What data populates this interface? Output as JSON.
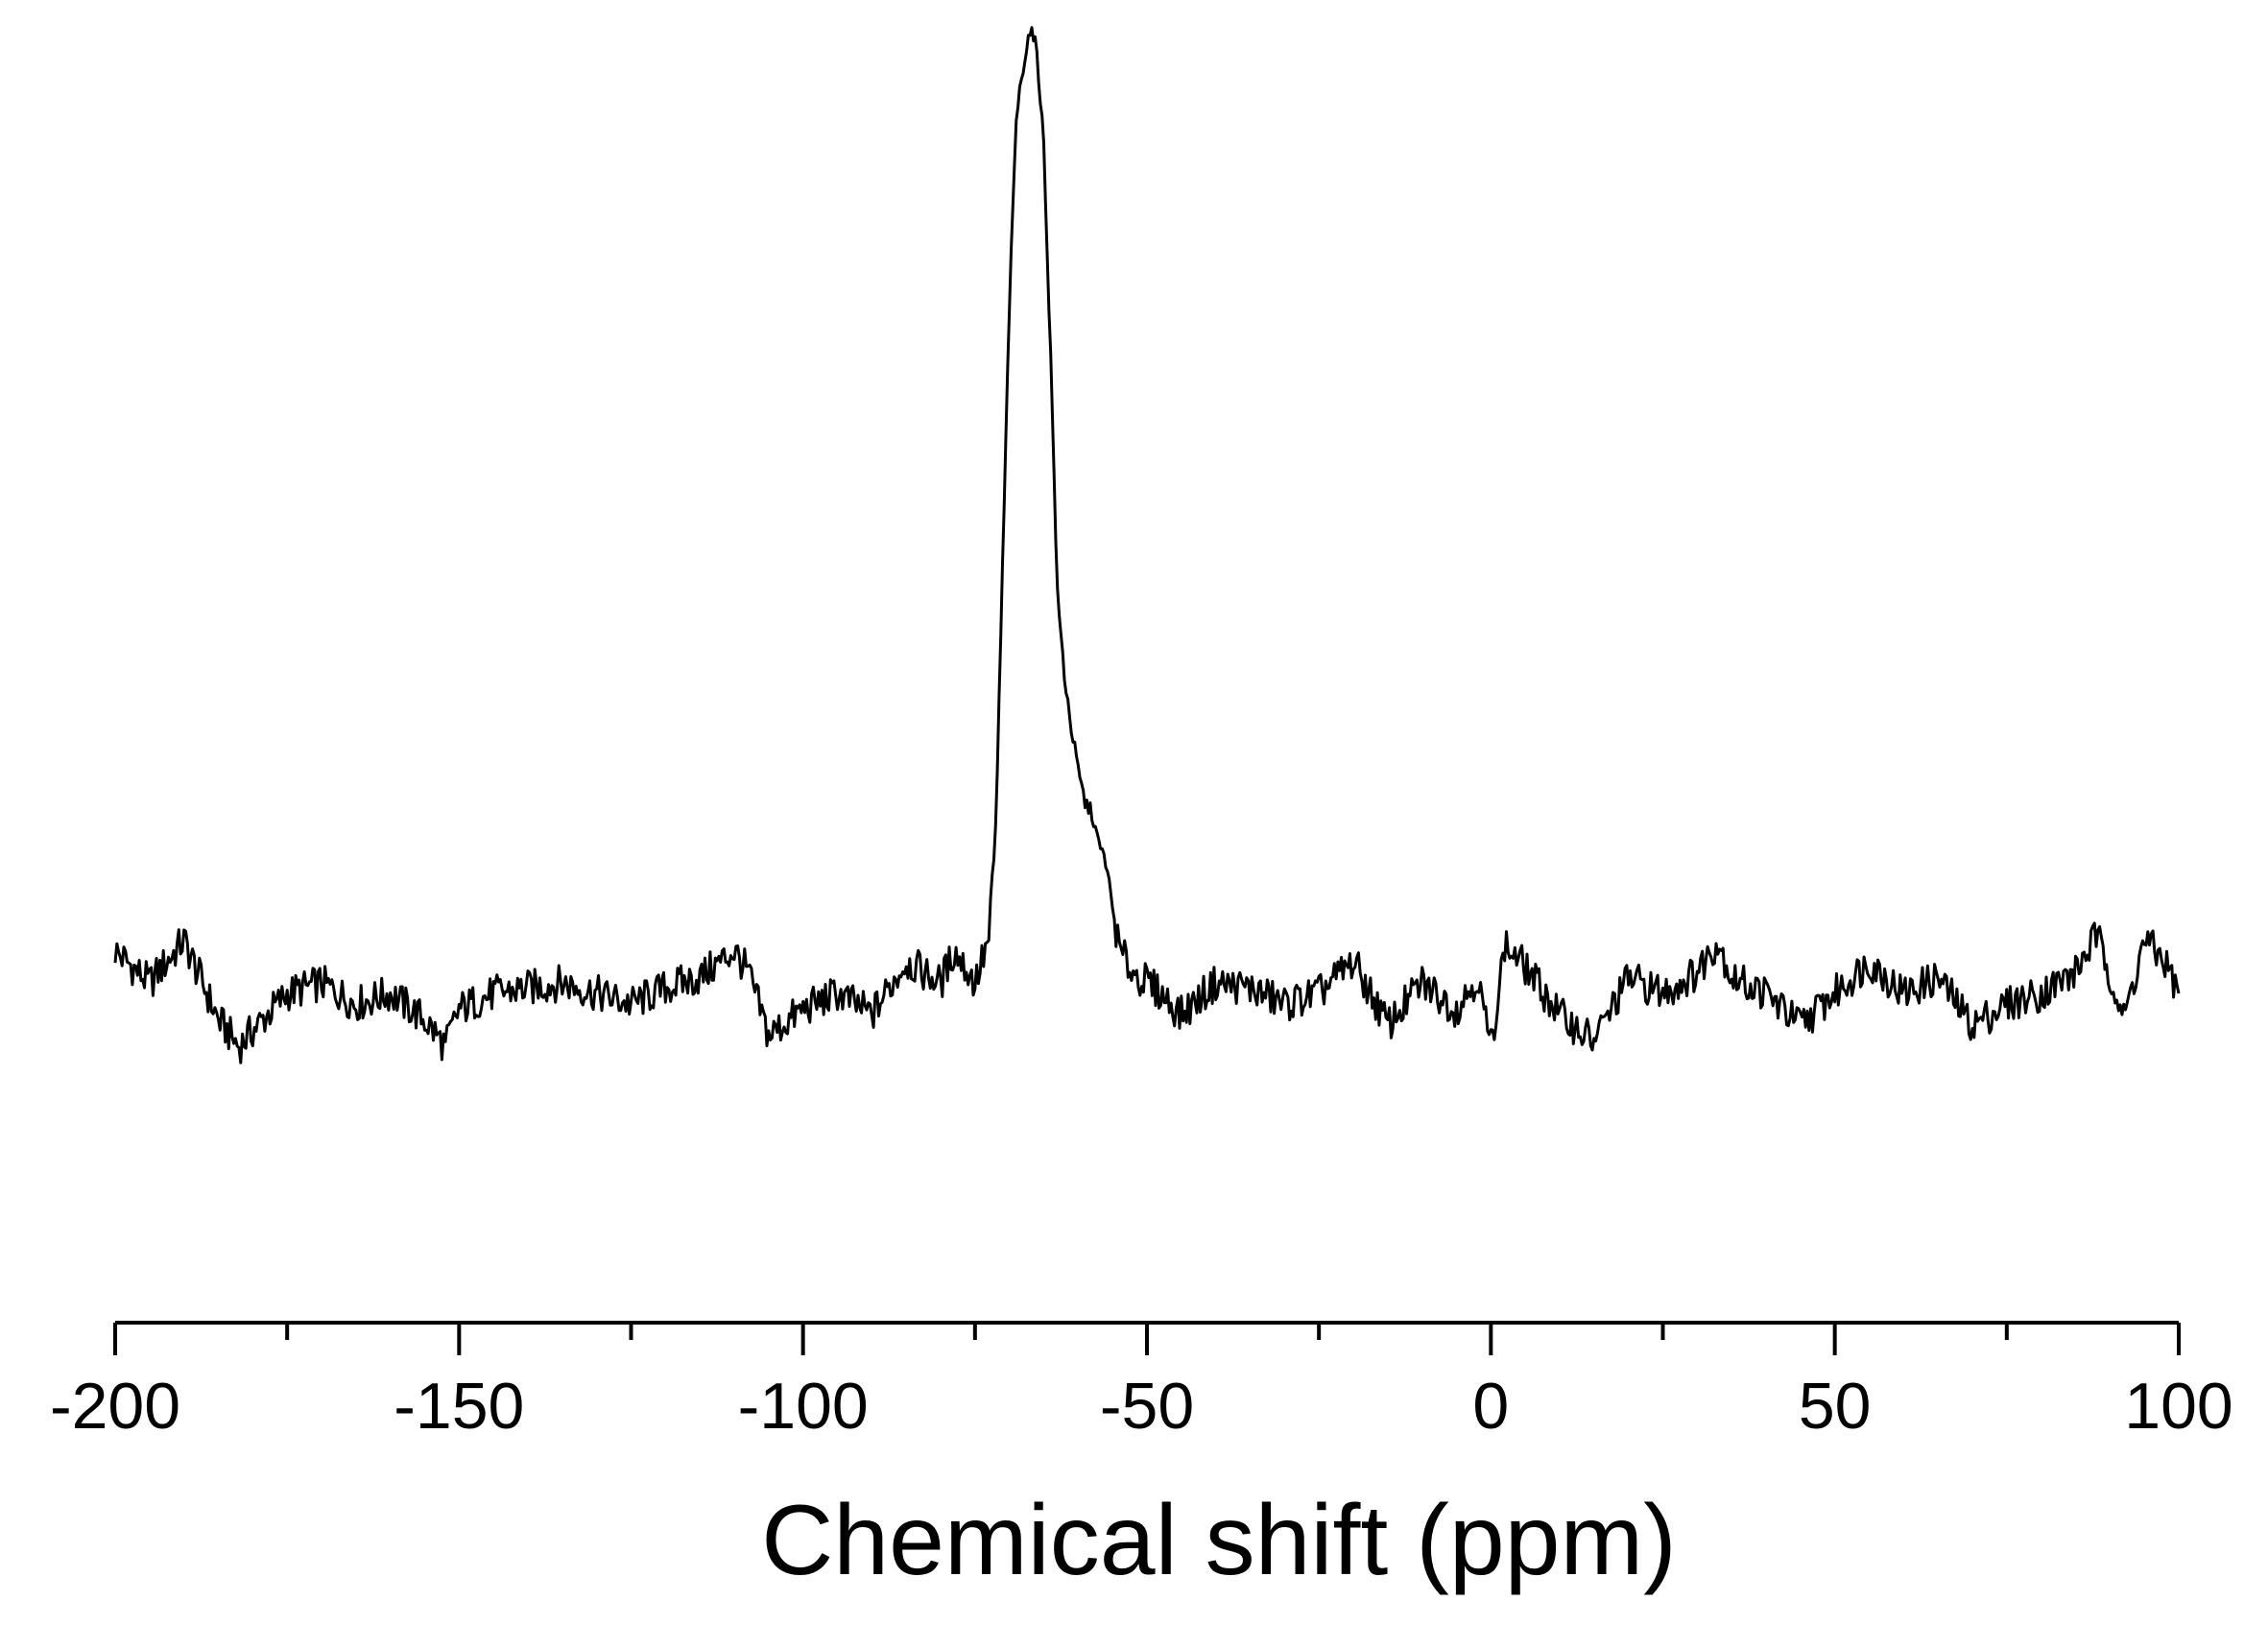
{
  "chart_data": {
    "type": "line",
    "title": "",
    "xlabel": "Chemical shift (ppm)",
    "ylabel": "",
    "xlim": [
      -200,
      100
    ],
    "xticks": [
      -200,
      -150,
      -100,
      -50,
      0,
      50,
      100
    ],
    "x_minor_step": 25,
    "y_axis_shown": false,
    "grid": false,
    "legend": "none",
    "line_color": "#000000",
    "series": [
      {
        "x": [
          -200,
          -195,
          -190,
          -185,
          -182,
          -180,
          -175,
          -170,
          -165,
          -160,
          -155,
          -152,
          -150,
          -145,
          -140,
          -135,
          -130,
          -125,
          -120,
          -115,
          -110,
          -108,
          -105,
          -100,
          -95,
          -90,
          -85,
          -80,
          -78,
          -75,
          -73,
          -72,
          -71,
          -70,
          -69,
          -68,
          -67,
          -66,
          -65,
          -64,
          -63,
          -62,
          -61,
          -60,
          -59,
          -58,
          -57,
          -56,
          -55,
          -54,
          -52,
          -50,
          -48,
          -45,
          -40,
          -35,
          -30,
          -25,
          -20,
          -15,
          -10,
          -5,
          -2,
          0,
          2,
          5,
          10,
          15,
          20,
          25,
          30,
          33,
          35,
          40,
          45,
          50,
          55,
          60,
          65,
          70,
          75,
          80,
          85,
          88,
          90,
          92,
          95,
          98,
          100
        ],
        "y": [
          0.08,
          0.02,
          0.1,
          -0.05,
          -0.1,
          -0.07,
          0.0,
          0.02,
          -0.02,
          0.0,
          -0.05,
          -0.1,
          -0.03,
          0.0,
          0.01,
          0.02,
          0.0,
          -0.02,
          0.01,
          0.03,
          0.08,
          0.04,
          -0.08,
          -0.03,
          0.0,
          -0.04,
          0.06,
          0.02,
          0.08,
          0.02,
          0.1,
          0.3,
          0.8,
          1.3,
          1.65,
          1.75,
          1.82,
          1.78,
          1.6,
          1.2,
          0.75,
          0.6,
          0.5,
          0.42,
          0.36,
          0.34,
          0.28,
          0.25,
          0.16,
          0.08,
          0.04,
          0.02,
          0.0,
          -0.04,
          0.02,
          0.01,
          -0.02,
          0.0,
          0.06,
          -0.06,
          0.02,
          -0.03,
          0.03,
          -0.1,
          0.09,
          0.05,
          -0.04,
          -0.09,
          0.03,
          0.0,
          0.04,
          0.1,
          0.03,
          0.0,
          -0.06,
          0.0,
          0.06,
          0.0,
          0.03,
          -0.06,
          -0.02,
          0.0,
          0.04,
          0.11,
          0.04,
          -0.05,
          0.1,
          0.06,
          0.0
        ]
      }
    ]
  }
}
